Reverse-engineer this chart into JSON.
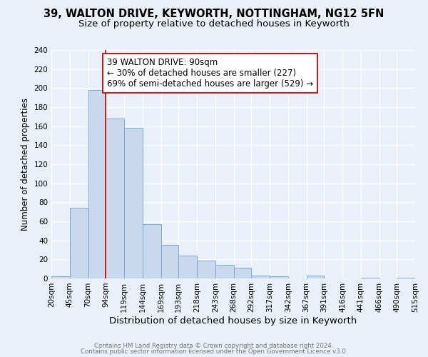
{
  "title_line1": "39, WALTON DRIVE, KEYWORTH, NOTTINGHAM, NG12 5FN",
  "title_line2": "Size of property relative to detached houses in Keyworth",
  "xlabel": "Distribution of detached houses by size in Keyworth",
  "ylabel": "Number of detached properties",
  "bin_edges": [
    20,
    45,
    70,
    94,
    119,
    144,
    169,
    193,
    218,
    243,
    268,
    292,
    317,
    342,
    367,
    391,
    416,
    441,
    466,
    490,
    515
  ],
  "counts": [
    2,
    74,
    198,
    168,
    158,
    57,
    35,
    24,
    19,
    14,
    11,
    3,
    2,
    0,
    3,
    0,
    0,
    1,
    0,
    1
  ],
  "bar_color": "#c9d9ed",
  "bar_edge_color": "#7aaacf",
  "vline_x": 94,
  "vline_color": "#cc0000",
  "annotation_text": "39 WALTON DRIVE: 90sqm\n← 30% of detached houses are smaller (227)\n69% of semi-detached houses are larger (529) →",
  "annotation_box_edge": "#cc0000",
  "annotation_fontsize": 8.5,
  "ylim": [
    0,
    240
  ],
  "yticks": [
    0,
    20,
    40,
    60,
    80,
    100,
    120,
    140,
    160,
    180,
    200,
    220,
    240
  ],
  "background_color": "#eaf0f9",
  "grid_color": "#ffffff",
  "footer_line1": "Contains HM Land Registry data © Crown copyright and database right 2024.",
  "footer_line2": "Contains public sector information licensed under the Open Government Licence v3.0.",
  "title_fontsize": 10.5,
  "subtitle_fontsize": 9.5,
  "xlabel_fontsize": 9.5,
  "ylabel_fontsize": 8.5,
  "tick_fontsize": 7.5
}
